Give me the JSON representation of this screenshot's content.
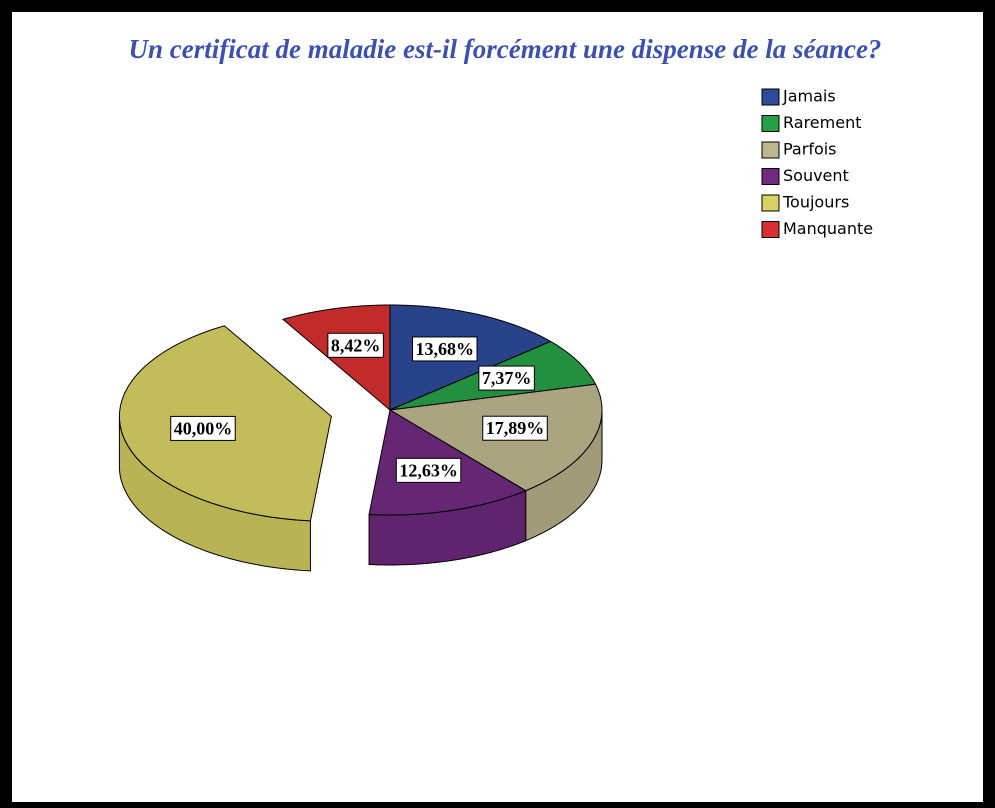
{
  "chart_data": {
    "type": "pie",
    "title": "Un certificat de maladie est-il forcément une dispense de la séance?",
    "categories": [
      "Jamais",
      "Rarement",
      "Parfois",
      "Souvent",
      "Toujours",
      "Manquante"
    ],
    "values": [
      13.68,
      7.37,
      17.89,
      12.63,
      40.0,
      8.42
    ],
    "value_labels": [
      "13,68%",
      "7,37%",
      "17,89%",
      "12,63%",
      "40,00%",
      "8,42%"
    ],
    "colors": [
      "#2e4a9a",
      "#26a045",
      "#bdb68e",
      "#702a80",
      "#d8d264",
      "#d83030"
    ],
    "legend": "top-right"
  }
}
